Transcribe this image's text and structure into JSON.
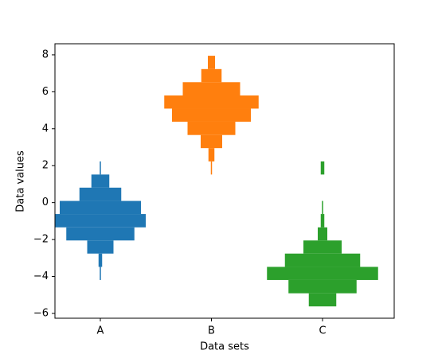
{
  "chart_data": {
    "type": "histogram",
    "orientation": "horizontal",
    "xlabel": "Data sets",
    "ylabel": "Data values",
    "bins": [
      -5.62,
      -4.91,
      -4.19,
      -3.48,
      -2.76,
      -2.05,
      -1.34,
      -0.62,
      0.09,
      0.81,
      1.52,
      2.23,
      2.95,
      3.66,
      4.38,
      5.09,
      5.8,
      6.52,
      7.23,
      7.95
    ],
    "series": [
      {
        "color": "#1f77b4",
        "values": [
          0,
          0,
          1,
          3,
          22,
          57,
          76,
          68,
          35,
          15,
          1,
          0,
          0,
          0,
          0,
          0,
          0,
          0,
          0
        ]
      },
      {
        "color": "#ff7f0e",
        "values": [
          0,
          0,
          0,
          0,
          0,
          0,
          0,
          0,
          0,
          0,
          1,
          5,
          18,
          40,
          66,
          79,
          48,
          17,
          6
        ]
      },
      {
        "color": "#2ca02c",
        "values": [
          23,
          57,
          93,
          63,
          32,
          8,
          3,
          1,
          0,
          0,
          3,
          0,
          0,
          0,
          0,
          0,
          0,
          0,
          0
        ]
      }
    ],
    "xlim": [
      -38,
      246
    ],
    "xticks": [
      {
        "value": 0,
        "label": "A"
      },
      {
        "value": 93,
        "label": "B"
      },
      {
        "value": 186,
        "label": "C"
      }
    ],
    "ylim": [
      -6.26,
      8.6
    ],
    "yticks": [
      {
        "value": -6,
        "label": "−6"
      },
      {
        "value": -4,
        "label": "−4"
      },
      {
        "value": -2,
        "label": "−2"
      },
      0,
      2,
      4,
      6,
      8
    ],
    "grid": false
  }
}
